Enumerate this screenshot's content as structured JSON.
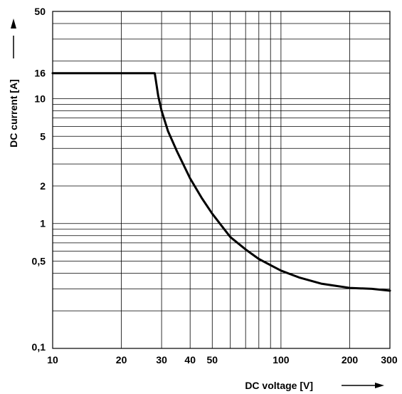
{
  "chart_data": {
    "type": "line",
    "title": "",
    "xlabel": "DC voltage [V]",
    "ylabel": "DC current [A]",
    "x_scale": "log",
    "y_scale": "log",
    "xlim": [
      10,
      300
    ],
    "ylim": [
      0.1,
      50
    ],
    "grid": true,
    "x_ticks": [
      {
        "value": 10,
        "label": "10"
      },
      {
        "value": 20,
        "label": "20"
      },
      {
        "value": 30,
        "label": "30"
      },
      {
        "value": 40,
        "label": "40"
      },
      {
        "value": 50,
        "label": "50"
      },
      {
        "value": 100,
        "label": "100"
      },
      {
        "value": 200,
        "label": "200"
      },
      {
        "value": 300,
        "label": "300"
      }
    ],
    "y_ticks": [
      {
        "value": 0.1,
        "label": "0,1"
      },
      {
        "value": 0.5,
        "label": "0,5"
      },
      {
        "value": 1,
        "label": "1"
      },
      {
        "value": 2,
        "label": "2"
      },
      {
        "value": 5,
        "label": "5"
      },
      {
        "value": 10,
        "label": "10"
      },
      {
        "value": 16,
        "label": "16"
      },
      {
        "value": 50,
        "label": "50"
      }
    ],
    "x_grid_values": [
      10,
      20,
      30,
      40,
      50,
      60,
      70,
      80,
      90,
      100,
      200,
      300
    ],
    "y_grid_values": [
      0.1,
      0.2,
      0.3,
      0.4,
      0.5,
      0.6,
      0.7,
      0.8,
      0.9,
      1,
      2,
      3,
      4,
      5,
      6,
      7,
      8,
      9,
      10,
      16,
      20,
      30,
      40,
      50
    ],
    "series": [
      {
        "color": "#000000",
        "points": [
          {
            "x": 10,
            "y": 16
          },
          {
            "x": 28,
            "y": 16
          },
          {
            "x": 29,
            "y": 10.5
          },
          {
            "x": 30,
            "y": 8
          },
          {
            "x": 32,
            "y": 5.5
          },
          {
            "x": 35,
            "y": 3.8
          },
          {
            "x": 40,
            "y": 2.3
          },
          {
            "x": 45,
            "y": 1.6
          },
          {
            "x": 50,
            "y": 1.2
          },
          {
            "x": 60,
            "y": 0.78
          },
          {
            "x": 70,
            "y": 0.62
          },
          {
            "x": 80,
            "y": 0.52
          },
          {
            "x": 100,
            "y": 0.42
          },
          {
            "x": 120,
            "y": 0.37
          },
          {
            "x": 150,
            "y": 0.33
          },
          {
            "x": 200,
            "y": 0.305
          },
          {
            "x": 250,
            "y": 0.3
          },
          {
            "x": 300,
            "y": 0.29
          }
        ]
      }
    ]
  }
}
